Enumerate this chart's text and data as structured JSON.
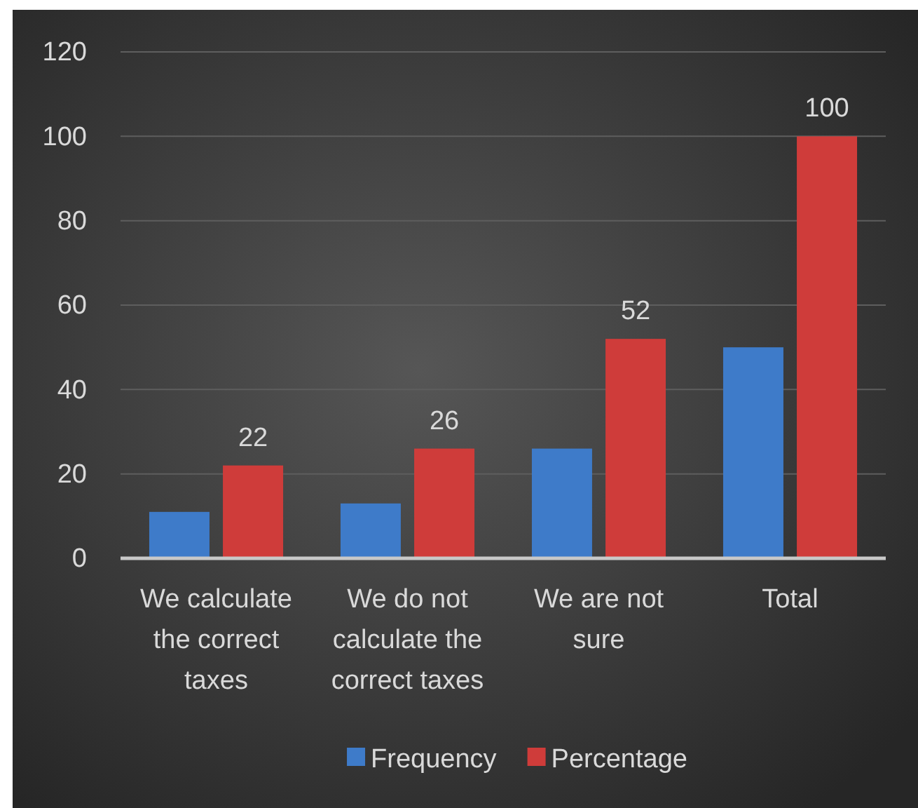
{
  "chart_data": {
    "type": "bar",
    "categories": [
      "We calculate the correct taxes",
      "We do not calculate the correct taxes",
      "We are not sure",
      "Total"
    ],
    "series": [
      {
        "name": "Frequency",
        "color": "#3e7bc9",
        "values": [
          11,
          13,
          26,
          50
        ]
      },
      {
        "name": "Percentage",
        "color": "#cf3c3a",
        "values": [
          22,
          26,
          52,
          100
        ],
        "value_labels": [
          "22",
          "26",
          "52",
          "100"
        ]
      }
    ],
    "ylim": [
      0,
      120
    ],
    "yticks": [
      0,
      20,
      40,
      60,
      80,
      100,
      120
    ],
    "grid": "y",
    "legend": "bottom"
  }
}
